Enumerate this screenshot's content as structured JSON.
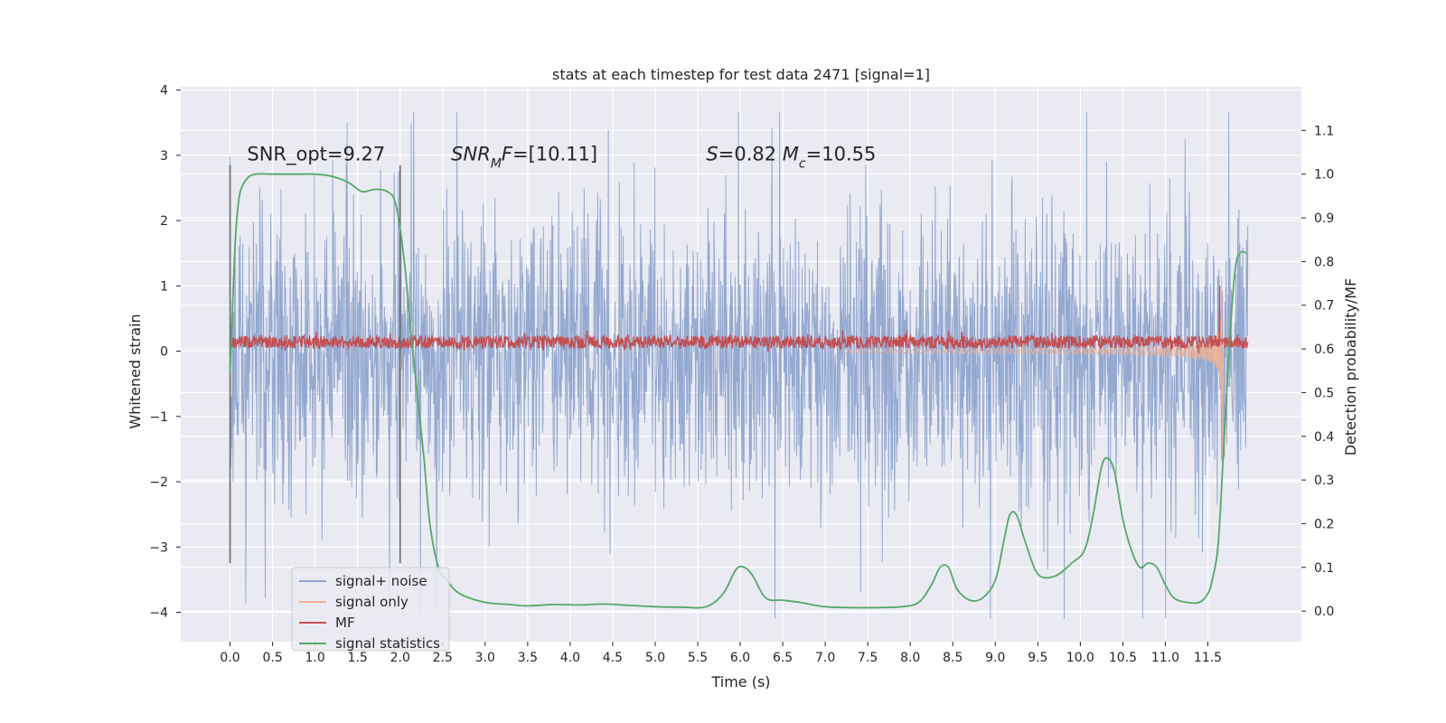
{
  "chart_data": {
    "type": "line",
    "title": "stats at each timestep for test data 2471 [signal=1]",
    "xlabel": "Time (s)",
    "ylabel": "Whitened strain",
    "y2label": "Detection probability/MF",
    "xlim": [
      -0.58,
      12.6
    ],
    "ylim": [
      -4.45,
      4.05
    ],
    "y2lim": [
      -0.07,
      1.2
    ],
    "x_ticks": [
      0.0,
      0.5,
      1.0,
      1.5,
      2.0,
      2.5,
      3.0,
      3.5,
      4.0,
      4.5,
      5.0,
      5.5,
      6.0,
      6.5,
      7.0,
      7.5,
      8.0,
      8.5,
      9.0,
      9.5,
      10.0,
      10.5,
      11.0,
      11.5
    ],
    "x_tick_labels": [
      "0.0",
      "0.5",
      "1.0",
      "1.5",
      "2.0",
      "2.5",
      "3.0",
      "3.5",
      "4.0",
      "4.5",
      "5.0",
      "5.5",
      "6.0",
      "6.5",
      "7.0",
      "7.5",
      "8.0",
      "8.5",
      "9.0",
      "9.5",
      "10.0",
      "10.5",
      "11.0",
      "11.5"
    ],
    "y_ticks": [
      4,
      3,
      2,
      1,
      0,
      -1,
      -2,
      -3,
      -4
    ],
    "y_tick_labels": [
      "4",
      "3",
      "2",
      "1",
      "0",
      "−1",
      "−2",
      "−3",
      "−4"
    ],
    "y2_ticks": [
      1.1,
      1.0,
      0.9,
      0.8,
      0.7,
      0.6,
      0.5,
      0.4,
      0.3,
      0.2,
      0.1,
      0.0
    ],
    "y2_tick_labels": [
      "1.1",
      "1.0",
      "0.9",
      "0.8",
      "0.7",
      "0.6",
      "0.5",
      "0.4",
      "0.3",
      "0.2",
      "0.1",
      "0.0"
    ],
    "grid": true,
    "legend_position": "lower-left",
    "annotations": [
      {
        "id": "snr-opt",
        "parts": [
          {
            "text": "SNR_opt=9.27"
          }
        ],
        "x": 0.2,
        "y": 2.92
      },
      {
        "id": "snr-mf",
        "parts": [
          {
            "text": "SNR",
            "italic": true
          },
          {
            "text": "M",
            "italic": true,
            "sub": true
          },
          {
            "text": "F",
            "italic": true
          },
          {
            "text": "=[10.11]"
          }
        ],
        "x": 2.6,
        "y": 2.92
      },
      {
        "id": "s-mc",
        "parts": [
          {
            "text": "S",
            "italic": true
          },
          {
            "text": "=0.82   "
          },
          {
            "text": "M",
            "italic": true
          },
          {
            "text": "c",
            "italic": true,
            "sub": true
          },
          {
            "text": "=10.55"
          }
        ],
        "x": 5.6,
        "y": 2.92
      }
    ],
    "vlines": [
      {
        "x": 0.0,
        "y": [
          -3.25,
          2.85
        ]
      },
      {
        "x": 2.0,
        "y": [
          -3.25,
          2.85
        ]
      }
    ],
    "series": [
      {
        "name": "signal+ noise",
        "color": "#8fa5cf",
        "axis": "left",
        "kind": "noise",
        "x_range": [
          0.0,
          11.97
        ],
        "typical_amplitude": 1.2,
        "max": 3.66,
        "min": -4.1
      },
      {
        "name": "signal only",
        "color": "#eeb095",
        "axis": "left",
        "kind": "chirp",
        "x_range": [
          7.2,
          11.66
        ],
        "peak_time": 11.66,
        "peak_amplitude": 1.15,
        "min": -1.7
      },
      {
        "name": "MF",
        "color": "#c44e52",
        "axis": "left",
        "kind": "band",
        "x_range": [
          0.0,
          11.97
        ],
        "center": 0.14,
        "band_halfwidth": 0.1,
        "spike": {
          "x": 11.64,
          "value": 1.0
        }
      },
      {
        "name": "signal statistics",
        "color": "#55a868",
        "axis": "right",
        "kind": "line",
        "x": [
          0.0,
          0.05,
          0.08,
          0.12,
          0.2,
          0.3,
          0.5,
          0.8,
          1.0,
          1.2,
          1.4,
          1.55,
          1.7,
          1.85,
          1.95,
          2.05,
          2.12,
          2.2,
          2.28,
          2.35,
          2.45,
          2.55,
          2.7,
          3.0,
          3.3,
          3.5,
          3.8,
          4.1,
          4.4,
          4.7,
          5.0,
          5.3,
          5.6,
          5.8,
          5.95,
          6.05,
          6.15,
          6.3,
          6.5,
          6.7,
          7.0,
          7.3,
          7.6,
          7.9,
          8.1,
          8.25,
          8.35,
          8.45,
          8.55,
          8.7,
          8.85,
          9.0,
          9.1,
          9.17,
          9.25,
          9.35,
          9.5,
          9.7,
          9.9,
          10.05,
          10.15,
          10.25,
          10.32,
          10.4,
          10.5,
          10.6,
          10.7,
          10.8,
          10.9,
          11.0,
          11.1,
          11.25,
          11.4,
          11.5,
          11.55,
          11.62,
          11.68,
          11.75,
          11.82,
          11.88,
          11.95
        ],
        "values": [
          0.55,
          0.8,
          0.9,
          0.96,
          0.99,
          1.0,
          1.0,
          1.0,
          1.0,
          0.995,
          0.98,
          0.96,
          0.965,
          0.96,
          0.93,
          0.8,
          0.65,
          0.5,
          0.35,
          0.2,
          0.1,
          0.07,
          0.04,
          0.02,
          0.015,
          0.012,
          0.015,
          0.014,
          0.016,
          0.013,
          0.01,
          0.009,
          0.01,
          0.04,
          0.095,
          0.1,
          0.08,
          0.03,
          0.025,
          0.02,
          0.01,
          0.008,
          0.008,
          0.01,
          0.02,
          0.06,
          0.1,
          0.1,
          0.05,
          0.025,
          0.03,
          0.07,
          0.16,
          0.22,
          0.22,
          0.16,
          0.085,
          0.08,
          0.11,
          0.14,
          0.22,
          0.33,
          0.35,
          0.32,
          0.21,
          0.14,
          0.1,
          0.11,
          0.1,
          0.06,
          0.03,
          0.02,
          0.02,
          0.04,
          0.07,
          0.15,
          0.35,
          0.6,
          0.78,
          0.82,
          0.82
        ]
      }
    ]
  }
}
